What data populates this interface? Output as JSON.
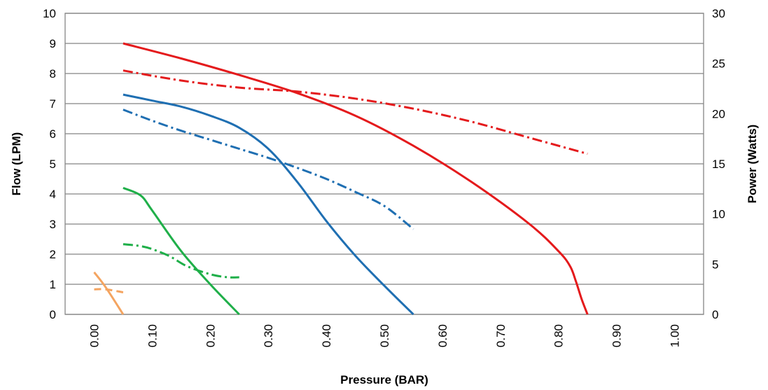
{
  "chart_data": {
    "type": "line",
    "title": "",
    "xlabel": "Pressure (BAR)",
    "ylabel": "Flow (LPM)",
    "y2label": "Power (Watts)",
    "xlim": [
      -0.05,
      1.05
    ],
    "ylim": [
      0,
      10
    ],
    "y2lim": [
      0,
      30
    ],
    "x_ticks": [
      "0.00",
      "0.10",
      "0.20",
      "0.30",
      "0.40",
      "0.50",
      "0.60",
      "0.70",
      "0.80",
      "0.90",
      "1.00"
    ],
    "y_ticks": [
      "0",
      "1",
      "2",
      "3",
      "4",
      "5",
      "6",
      "7",
      "8",
      "9",
      "10"
    ],
    "y2_ticks": [
      "0",
      "5",
      "10",
      "15",
      "20",
      "25",
      "30"
    ],
    "grid": "horizontal",
    "legend": "none",
    "series": [
      {
        "axis": "left",
        "style": "solid",
        "color": "#E41A1C",
        "x": [
          0.05,
          0.15,
          0.25,
          0.35,
          0.45,
          0.55,
          0.65,
          0.75,
          0.8,
          0.82,
          0.83,
          0.84,
          0.85
        ],
        "y": [
          9.0,
          8.5,
          7.95,
          7.35,
          6.6,
          5.6,
          4.4,
          3.0,
          2.1,
          1.6,
          1.1,
          0.5,
          0.0
        ]
      },
      {
        "axis": "right",
        "style": "dashdot",
        "color": "#E41A1C",
        "x": [
          0.05,
          0.15,
          0.25,
          0.35,
          0.45,
          0.55,
          0.65,
          0.75,
          0.85
        ],
        "y": [
          24.3,
          23.3,
          22.6,
          22.2,
          21.5,
          20.5,
          19.2,
          17.6,
          16.0
        ]
      },
      {
        "axis": "left",
        "style": "solid",
        "color": "#1F6FB2",
        "x": [
          0.05,
          0.1,
          0.15,
          0.2,
          0.25,
          0.3,
          0.35,
          0.4,
          0.45,
          0.5,
          0.55
        ],
        "y": [
          7.3,
          7.1,
          6.9,
          6.6,
          6.2,
          5.5,
          4.4,
          3.1,
          1.95,
          0.95,
          0.0
        ]
      },
      {
        "axis": "right",
        "style": "dashdot",
        "color": "#1F6FB2",
        "x": [
          0.05,
          0.1,
          0.15,
          0.2,
          0.25,
          0.3,
          0.35,
          0.4,
          0.45,
          0.5,
          0.55
        ],
        "y": [
          20.4,
          19.3,
          18.3,
          17.4,
          16.5,
          15.6,
          14.6,
          13.5,
          12.2,
          10.8,
          8.5
        ]
      },
      {
        "axis": "left",
        "style": "solid",
        "color": "#1FAF49",
        "x": [
          0.05,
          0.08,
          0.1,
          0.15,
          0.2,
          0.25
        ],
        "y": [
          4.2,
          3.95,
          3.45,
          2.1,
          1.0,
          0.0
        ]
      },
      {
        "axis": "right",
        "style": "dashdot",
        "color": "#1FAF49",
        "x": [
          0.05,
          0.08,
          0.1,
          0.13,
          0.16,
          0.2,
          0.23,
          0.25
        ],
        "y": [
          7.0,
          6.8,
          6.5,
          5.8,
          4.8,
          4.0,
          3.7,
          3.7
        ]
      },
      {
        "axis": "left",
        "style": "solid",
        "color": "#F4A460",
        "x": [
          0.0,
          0.02,
          0.05
        ],
        "y": [
          1.4,
          0.9,
          0.0
        ]
      },
      {
        "axis": "right",
        "style": "dashed",
        "color": "#F4A460",
        "x": [
          0.0,
          0.02,
          0.05
        ],
        "y": [
          2.5,
          2.5,
          2.2
        ]
      }
    ]
  }
}
